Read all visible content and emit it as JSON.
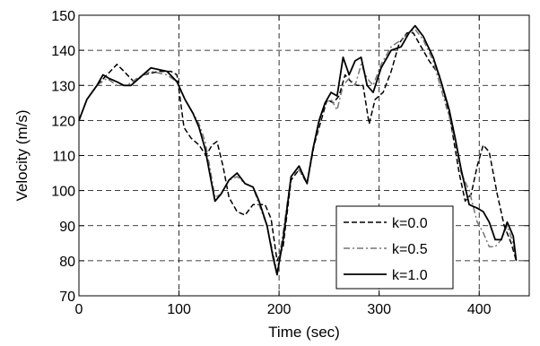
{
  "chart_data": {
    "type": "line",
    "title": "",
    "xlabel": "Time (sec)",
    "ylabel": "Velocity (m/s)",
    "xlim": [
      0,
      450
    ],
    "ylim": [
      70,
      150
    ],
    "xticks": [
      0,
      100,
      200,
      300,
      400
    ],
    "yticks": [
      70,
      80,
      90,
      100,
      110,
      120,
      130,
      140,
      150
    ],
    "grid": true,
    "legend_position": "bottom-right",
    "series": [
      {
        "name": "k=0.0",
        "style": "dashed",
        "color": "#000000",
        "points": [
          [
            0,
            120
          ],
          [
            8,
            126
          ],
          [
            18,
            130
          ],
          [
            28,
            133
          ],
          [
            38,
            136
          ],
          [
            45,
            134
          ],
          [
            55,
            131
          ],
          [
            65,
            133
          ],
          [
            80,
            134
          ],
          [
            92,
            134
          ],
          [
            98,
            133
          ],
          [
            105,
            118
          ],
          [
            112,
            115
          ],
          [
            120,
            113
          ],
          [
            127,
            110
          ],
          [
            133,
            113
          ],
          [
            138,
            114
          ],
          [
            144,
            107
          ],
          [
            150,
            98
          ],
          [
            158,
            94
          ],
          [
            166,
            93
          ],
          [
            174,
            96
          ],
          [
            186,
            96
          ],
          [
            192,
            92
          ],
          [
            198,
            80
          ],
          [
            204,
            84
          ],
          [
            212,
            103
          ],
          [
            220,
            106
          ],
          [
            228,
            102
          ],
          [
            235,
            113
          ],
          [
            242,
            120
          ],
          [
            248,
            126
          ],
          [
            254,
            125
          ],
          [
            260,
            127
          ],
          [
            266,
            133
          ],
          [
            272,
            131
          ],
          [
            278,
            130
          ],
          [
            284,
            130
          ],
          [
            290,
            119
          ],
          [
            296,
            126
          ],
          [
            304,
            128
          ],
          [
            312,
            134
          ],
          [
            320,
            142
          ],
          [
            328,
            145
          ],
          [
            334,
            145
          ],
          [
            340,
            142
          ],
          [
            350,
            137
          ],
          [
            360,
            133
          ],
          [
            370,
            122
          ],
          [
            380,
            105
          ],
          [
            386,
            97
          ],
          [
            392,
            99
          ],
          [
            398,
            107
          ],
          [
            404,
            113
          ],
          [
            410,
            111
          ],
          [
            418,
            99
          ],
          [
            425,
            90
          ],
          [
            432,
            85
          ],
          [
            437,
            80
          ]
        ]
      },
      {
        "name": "k=0.5",
        "style": "dashdot",
        "color": "#777777",
        "points": [
          [
            0,
            120
          ],
          [
            8,
            126
          ],
          [
            18,
            130
          ],
          [
            28,
            132
          ],
          [
            38,
            130
          ],
          [
            48,
            130
          ],
          [
            58,
            132
          ],
          [
            72,
            134
          ],
          [
            88,
            133
          ],
          [
            98,
            131
          ],
          [
            106,
            126
          ],
          [
            114,
            122
          ],
          [
            120,
            119
          ],
          [
            126,
            114
          ],
          [
            130,
            108
          ],
          [
            136,
            98
          ],
          [
            142,
            99
          ],
          [
            150,
            103
          ],
          [
            158,
            104
          ],
          [
            166,
            102
          ],
          [
            174,
            101
          ],
          [
            180,
            96
          ],
          [
            188,
            90
          ],
          [
            194,
            82
          ],
          [
            198,
            77
          ],
          [
            204,
            88
          ],
          [
            212,
            104
          ],
          [
            220,
            106
          ],
          [
            228,
            102
          ],
          [
            234,
            112
          ],
          [
            240,
            119
          ],
          [
            246,
            125
          ],
          [
            252,
            126
          ],
          [
            258,
            123
          ],
          [
            264,
            130
          ],
          [
            270,
            132
          ],
          [
            276,
            130
          ],
          [
            282,
            136
          ],
          [
            288,
            132
          ],
          [
            294,
            130
          ],
          [
            302,
            136
          ],
          [
            312,
            141
          ],
          [
            322,
            143
          ],
          [
            330,
            145
          ],
          [
            336,
            146
          ],
          [
            344,
            143
          ],
          [
            354,
            137
          ],
          [
            362,
            129
          ],
          [
            370,
            121
          ],
          [
            376,
            114
          ],
          [
            382,
            105
          ],
          [
            390,
            100
          ],
          [
            398,
            91
          ],
          [
            404,
            88
          ],
          [
            410,
            84
          ],
          [
            416,
            84
          ],
          [
            422,
            86
          ],
          [
            428,
            90
          ],
          [
            434,
            85
          ],
          [
            437,
            80
          ]
        ]
      },
      {
        "name": "k=1.0",
        "style": "solid",
        "color": "#000000",
        "points": [
          [
            0,
            120
          ],
          [
            8,
            126
          ],
          [
            18,
            130
          ],
          [
            24,
            133
          ],
          [
            30,
            132
          ],
          [
            38,
            131
          ],
          [
            45,
            130
          ],
          [
            52,
            130
          ],
          [
            60,
            132
          ],
          [
            72,
            135
          ],
          [
            88,
            134
          ],
          [
            98,
            131
          ],
          [
            106,
            126
          ],
          [
            114,
            122
          ],
          [
            120,
            118
          ],
          [
            126,
            112
          ],
          [
            130,
            106
          ],
          [
            136,
            97
          ],
          [
            142,
            99
          ],
          [
            150,
            103
          ],
          [
            158,
            105
          ],
          [
            166,
            102
          ],
          [
            174,
            101
          ],
          [
            180,
            97
          ],
          [
            188,
            90
          ],
          [
            194,
            81
          ],
          [
            198,
            76
          ],
          [
            204,
            86
          ],
          [
            212,
            104
          ],
          [
            220,
            107
          ],
          [
            228,
            102
          ],
          [
            234,
            112
          ],
          [
            240,
            120
          ],
          [
            246,
            125
          ],
          [
            252,
            128
          ],
          [
            258,
            127
          ],
          [
            264,
            138
          ],
          [
            270,
            133
          ],
          [
            276,
            137
          ],
          [
            282,
            138
          ],
          [
            288,
            130
          ],
          [
            294,
            128
          ],
          [
            302,
            135
          ],
          [
            312,
            140
          ],
          [
            322,
            141
          ],
          [
            330,
            145
          ],
          [
            336,
            147
          ],
          [
            344,
            144
          ],
          [
            354,
            138
          ],
          [
            362,
            131
          ],
          [
            370,
            123
          ],
          [
            376,
            115
          ],
          [
            382,
            106
          ],
          [
            390,
            96
          ],
          [
            398,
            95
          ],
          [
            404,
            94
          ],
          [
            410,
            91
          ],
          [
            416,
            86
          ],
          [
            422,
            86
          ],
          [
            428,
            91
          ],
          [
            434,
            87
          ],
          [
            437,
            80
          ]
        ]
      }
    ]
  }
}
